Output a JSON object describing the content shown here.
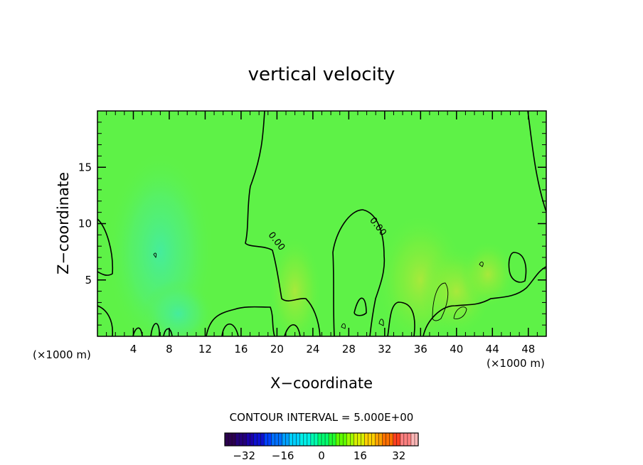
{
  "chart_data": {
    "type": "heatmap",
    "title": "vertical velocity",
    "xlabel": "X−coordinate",
    "ylabel": "Z−coordinate",
    "x_unit_left": "(×1000 m)",
    "x_unit_right": "(×1000 m)",
    "xlim": [
      0,
      50
    ],
    "ylim": [
      0,
      20
    ],
    "x_ticks": [
      4,
      8,
      12,
      16,
      20,
      24,
      28,
      32,
      36,
      40,
      44,
      48
    ],
    "x_tick_labels": [
      "4",
      "8",
      "12",
      "16",
      "20",
      "24",
      "28",
      "32",
      "36",
      "40",
      "44",
      "48"
    ],
    "y_ticks": [
      5,
      10,
      15
    ],
    "y_tick_labels": [
      "5",
      "10",
      "15"
    ],
    "contour_interval_text": "CONTOUR INTERVAL = 5.000E+00",
    "contour_interval": 5.0,
    "contour_labels": [
      {
        "text": "0.00",
        "x": 19.0,
        "z": 9.0
      },
      {
        "text": "0.00",
        "x": 30.3,
        "z": 10.3
      }
    ],
    "colorbar": {
      "range": [
        -40,
        40
      ],
      "ticks": [
        -32,
        -16,
        0,
        16,
        32
      ],
      "tick_labels": [
        "−32",
        "−16",
        "0",
        "16",
        "32"
      ],
      "colors": [
        "#2b004f",
        "#24007a",
        "#1a00a8",
        "#0d10d0",
        "#0040ff",
        "#0070ff",
        "#00a0ff",
        "#00d0ff",
        "#00f0e8",
        "#00ffb0",
        "#00ff70",
        "#20ff30",
        "#60ff00",
        "#a0ff00",
        "#d8f000",
        "#ffd000",
        "#ffa000",
        "#ff7000",
        "#ff4020",
        "#ff8080",
        "#ffb8b8"
      ]
    },
    "field_description_values": {
      "background": 0.5,
      "blobs": [
        {
          "x": 7.0,
          "z": 7.5,
          "rx": 6.0,
          "rz": 9.0,
          "value": -6.0
        },
        {
          "x": 9.0,
          "z": 2.0,
          "rx": 4.0,
          "rz": 3.0,
          "value": -4.0
        },
        {
          "x": 22.0,
          "z": 4.0,
          "rx": 3.0,
          "rz": 5.0,
          "value": 2.5
        },
        {
          "x": 36.0,
          "z": 5.0,
          "rx": 5.0,
          "rz": 6.0,
          "value": 3.0
        },
        {
          "x": 40.0,
          "z": 4.0,
          "rx": 4.0,
          "rz": 4.0,
          "value": 4.0
        },
        {
          "x": 43.5,
          "z": 5.5,
          "rx": 3.0,
          "rz": 3.0,
          "value": 3.5
        }
      ]
    }
  }
}
